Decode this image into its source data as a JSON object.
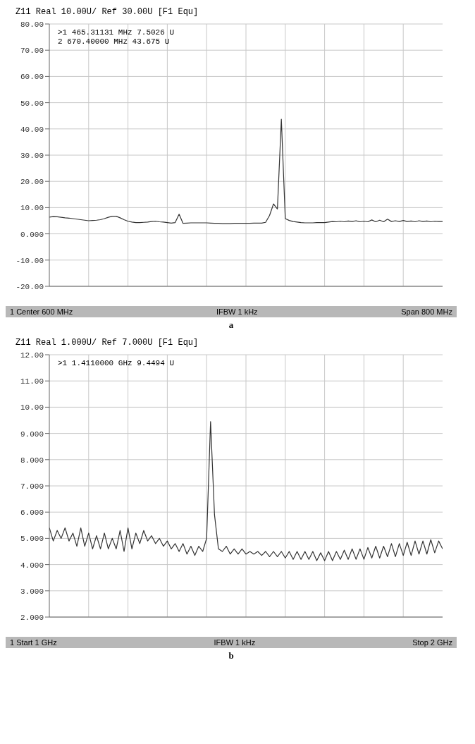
{
  "chart_data": [
    {
      "type": "line",
      "title": "Z11 Real 10.00U/ Ref 30.00U [F1 Equ]",
      "categories": [
        null,
        null,
        null,
        null,
        null,
        null,
        null,
        null,
        null,
        null,
        null,
        null,
        null,
        null,
        null,
        null,
        null,
        null,
        null,
        null,
        null,
        null,
        null,
        null,
        null,
        null,
        null,
        null,
        null,
        null,
        null,
        null,
        null,
        null,
        null,
        null,
        null,
        null,
        null,
        null,
        null,
        null,
        null,
        null,
        null,
        null,
        null,
        null,
        null,
        null,
        null,
        null,
        null,
        null,
        null,
        null,
        null,
        null,
        null,
        null,
        null,
        null,
        null,
        null,
        null,
        null,
        null,
        null,
        null,
        null,
        null,
        null,
        null,
        null,
        null,
        null,
        null,
        null,
        null,
        null,
        null,
        null,
        null,
        null,
        null,
        null,
        null,
        null,
        null,
        null,
        null,
        null,
        null,
        null,
        null,
        null,
        null,
        null,
        null,
        null,
        null
      ],
      "series": [
        {
          "color": "#333333",
          "values": [
            6.4,
            6.6,
            6.5,
            6.3,
            6.1,
            6.0,
            5.8,
            5.6,
            5.4,
            5.2,
            5.0,
            5.1,
            5.2,
            5.4,
            5.8,
            6.3,
            6.7,
            6.7,
            6.1,
            5.4,
            4.8,
            4.5,
            4.3,
            4.3,
            4.4,
            4.5,
            4.7,
            4.8,
            4.6,
            4.5,
            4.3,
            4.1,
            4.3,
            7.5,
            4.0,
            4.1,
            4.2,
            4.2,
            4.2,
            4.2,
            4.2,
            4.1,
            4.0,
            4.0,
            3.9,
            3.9,
            3.9,
            4.0,
            4.0,
            4.0,
            4.0,
            4.0,
            4.1,
            4.1,
            4.1,
            4.4,
            7.0,
            11.4,
            9.5,
            43.7,
            5.8,
            5.1,
            4.7,
            4.5,
            4.3,
            4.2,
            4.2,
            4.2,
            4.3,
            4.3,
            4.3,
            4.5,
            4.7,
            4.6,
            4.8,
            4.6,
            4.9,
            4.7,
            5.0,
            4.6,
            4.8,
            4.6,
            5.3,
            4.6,
            5.2,
            4.6,
            5.6,
            4.7,
            5.0,
            4.7,
            5.1,
            4.7,
            4.9,
            4.6,
            5.0,
            4.7,
            4.9,
            4.6,
            4.8,
            4.7,
            4.7
          ]
        }
      ],
      "ylim": [
        -20,
        80
      ],
      "yticks": [
        {
          "value": -20,
          "label": "-20.00"
        },
        {
          "value": -10,
          "label": "-10.00"
        },
        {
          "value": 0,
          "label": "0.000"
        },
        {
          "value": 10,
          "label": "10.00"
        },
        {
          "value": 20,
          "label": "20.00"
        },
        {
          "value": 30,
          "label": "30.00"
        },
        {
          "value": 40,
          "label": "40.00"
        },
        {
          "value": 50,
          "label": "50.00"
        },
        {
          "value": 60,
          "label": "60.00"
        },
        {
          "value": 70,
          "label": "70.00"
        },
        {
          "value": 80,
          "label": "80.00"
        }
      ],
      "grid": true,
      "line_style": "solid",
      "annotations": [
        ">1 465.31131 MHz 7.5026 U",
        "2 670.40000 MHz 43.675 U",
        "1 Center 600 MHz",
        "IFBW 1 kHz",
        "Span 800 MHz",
        "a"
      ]
    },
    {
      "type": "line",
      "title": "Z11 Real 1.000U/ Ref 7.000U [F1 Equ]",
      "categories": [
        null,
        null,
        null,
        null,
        null,
        null,
        null,
        null,
        null,
        null,
        null,
        null,
        null,
        null,
        null,
        null,
        null,
        null,
        null,
        null,
        null,
        null,
        null,
        null,
        null,
        null,
        null,
        null,
        null,
        null,
        null,
        null,
        null,
        null,
        null,
        null,
        null,
        null,
        null,
        null,
        null,
        null,
        null,
        null,
        null,
        null,
        null,
        null,
        null,
        null,
        null,
        null,
        null,
        null,
        null,
        null,
        null,
        null,
        null,
        null,
        null,
        null,
        null,
        null,
        null,
        null,
        null,
        null,
        null,
        null,
        null,
        null,
        null,
        null,
        null,
        null,
        null,
        null,
        null,
        null,
        null,
        null,
        null,
        null,
        null,
        null,
        null,
        null,
        null,
        null,
        null,
        null,
        null,
        null,
        null,
        null,
        null,
        null,
        null,
        null,
        null
      ],
      "series": [
        {
          "color": "#333333",
          "values": [
            5.4,
            4.9,
            5.3,
            5.0,
            5.4,
            4.9,
            5.2,
            4.7,
            5.4,
            4.7,
            5.2,
            4.6,
            5.1,
            4.6,
            5.2,
            4.6,
            5.0,
            4.6,
            5.3,
            4.5,
            5.4,
            4.6,
            5.2,
            4.8,
            5.3,
            4.9,
            5.1,
            4.8,
            5.0,
            4.7,
            4.9,
            4.6,
            4.8,
            4.5,
            4.8,
            4.4,
            4.7,
            4.35,
            4.7,
            4.5,
            5.0,
            9.45,
            5.9,
            4.6,
            4.5,
            4.7,
            4.4,
            4.6,
            4.4,
            4.6,
            4.4,
            4.5,
            4.4,
            4.5,
            4.35,
            4.5,
            4.3,
            4.5,
            4.3,
            4.5,
            4.25,
            4.5,
            4.2,
            4.5,
            4.2,
            4.5,
            4.2,
            4.5,
            4.15,
            4.45,
            4.15,
            4.5,
            4.15,
            4.5,
            4.2,
            4.55,
            4.2,
            4.6,
            4.2,
            4.6,
            4.2,
            4.65,
            4.25,
            4.7,
            4.25,
            4.7,
            4.3,
            4.8,
            4.3,
            4.8,
            4.35,
            4.85,
            4.35,
            4.9,
            4.4,
            4.9,
            4.4,
            4.95,
            4.45,
            4.9,
            4.6
          ]
        }
      ],
      "ylim": [
        2,
        12
      ],
      "yticks": [
        {
          "value": 2,
          "label": "2.000"
        },
        {
          "value": 3,
          "label": "3.000"
        },
        {
          "value": 4,
          "label": "4.000"
        },
        {
          "value": 5,
          "label": "5.000"
        },
        {
          "value": 6,
          "label": "6.000"
        },
        {
          "value": 7,
          "label": "7.000"
        },
        {
          "value": 8,
          "label": "8.000"
        },
        {
          "value": 9,
          "label": "9.000"
        },
        {
          "value": 10,
          "label": "10.00"
        },
        {
          "value": 11,
          "label": "11.00"
        },
        {
          "value": 12,
          "label": "12.00"
        }
      ],
      "grid": true,
      "line_style": "solid",
      "annotations": [
        ">1 1.4110000 GHz 9.4494 U",
        "1 Start 1 GHz",
        "IFBW 1 kHz",
        "Stop 2 GHz",
        "b"
      ]
    }
  ]
}
